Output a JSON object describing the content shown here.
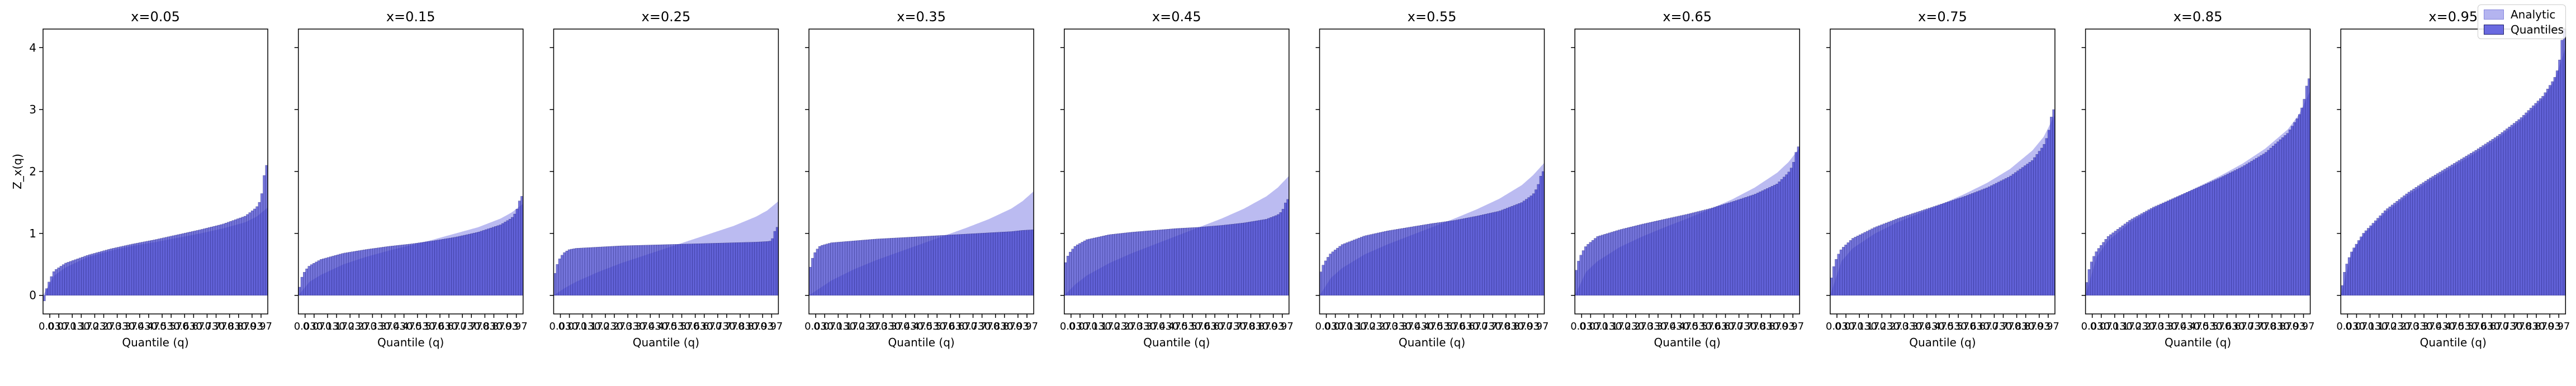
{
  "chart_data": {
    "type": "bar",
    "colors": {
      "analytic": "#b4b4f0",
      "quantiles": "#3a3acc",
      "quantiles_edge": "#20206a"
    },
    "legend": {
      "position": "top-right",
      "entries": [
        "Analytic",
        "Quantiles"
      ]
    },
    "ylabel": "Z_x(q)",
    "xlabel": "Quantile (q)",
    "ylim": [
      -0.3,
      4.3
    ],
    "yticks": [
      0,
      1,
      2,
      3,
      4
    ],
    "xlim": [
      0.0,
      1.0
    ],
    "xticks": [
      0.03,
      0.13,
      0.23,
      0.33,
      0.43,
      0.53,
      0.63,
      0.73,
      0.83,
      0.93
    ],
    "xtick_labels": [
      "0.03",
      "0.13",
      "0.23",
      "0.33",
      "0.43",
      "0.53",
      "0.63",
      "0.73",
      "0.83",
      "0.93"
    ],
    "xtick_labels_2": [
      "0.07",
      "0.17",
      "0.27",
      "0.37",
      "0.47",
      "0.57",
      "0.67",
      "0.77",
      "0.87",
      "0.97"
    ],
    "panels": [
      {
        "title": "x=0.05",
        "analytic": {
          "q": [
            0.0,
            0.05,
            0.1,
            0.2,
            0.3,
            0.4,
            0.5,
            0.6,
            0.7,
            0.8,
            0.9,
            0.95,
            1.0
          ],
          "z": [
            0.0,
            0.32,
            0.45,
            0.62,
            0.72,
            0.8,
            0.86,
            0.93,
            1.0,
            1.08,
            1.18,
            1.27,
            1.42
          ]
        },
        "quantiles": {
          "q": [
            0.0,
            0.01,
            0.03,
            0.05,
            0.1,
            0.2,
            0.3,
            0.4,
            0.5,
            0.6,
            0.7,
            0.8,
            0.9,
            0.95,
            0.97,
            0.99,
            1.0
          ],
          "z": [
            -0.25,
            0.05,
            0.25,
            0.4,
            0.52,
            0.65,
            0.75,
            0.83,
            0.9,
            0.98,
            1.06,
            1.15,
            1.28,
            1.42,
            1.55,
            2.1,
            2.1
          ]
        }
      },
      {
        "title": "x=0.15",
        "analytic": {
          "q": [
            0.0,
            0.05,
            0.1,
            0.2,
            0.3,
            0.4,
            0.5,
            0.6,
            0.7,
            0.8,
            0.9,
            0.95,
            1.0
          ],
          "z": [
            0.0,
            0.22,
            0.33,
            0.5,
            0.62,
            0.72,
            0.81,
            0.9,
            1.0,
            1.1,
            1.24,
            1.34,
            1.48
          ]
        },
        "quantiles": {
          "q": [
            0.0,
            0.01,
            0.03,
            0.05,
            0.1,
            0.2,
            0.3,
            0.4,
            0.5,
            0.6,
            0.7,
            0.8,
            0.9,
            0.95,
            0.97,
            0.99,
            1.0
          ],
          "z": [
            0.0,
            0.25,
            0.4,
            0.48,
            0.58,
            0.68,
            0.74,
            0.79,
            0.83,
            0.88,
            0.94,
            1.02,
            1.14,
            1.25,
            1.35,
            1.6,
            1.6
          ]
        }
      },
      {
        "title": "x=0.25",
        "analytic": {
          "q": [
            0.0,
            0.05,
            0.1,
            0.2,
            0.3,
            0.4,
            0.5,
            0.6,
            0.7,
            0.8,
            0.9,
            0.95,
            1.0
          ],
          "z": [
            0.0,
            0.12,
            0.22,
            0.38,
            0.52,
            0.64,
            0.76,
            0.88,
            1.0,
            1.12,
            1.27,
            1.37,
            1.52
          ]
        },
        "quantiles": {
          "q": [
            0.0,
            0.01,
            0.03,
            0.05,
            0.07,
            0.1,
            0.2,
            0.3,
            0.4,
            0.5,
            0.6,
            0.7,
            0.8,
            0.9,
            0.95,
            0.97,
            0.99,
            1.0
          ],
          "z": [
            0.25,
            0.45,
            0.62,
            0.7,
            0.74,
            0.76,
            0.78,
            0.8,
            0.81,
            0.82,
            0.83,
            0.84,
            0.85,
            0.86,
            0.87,
            0.88,
            1.1,
            1.1
          ]
        }
      },
      {
        "title": "x=0.35",
        "analytic": {
          "q": [
            0.0,
            0.05,
            0.1,
            0.2,
            0.3,
            0.4,
            0.5,
            0.6,
            0.7,
            0.8,
            0.9,
            0.95,
            1.0
          ],
          "z": [
            0.0,
            0.12,
            0.24,
            0.42,
            0.57,
            0.7,
            0.83,
            0.96,
            1.09,
            1.23,
            1.4,
            1.52,
            1.68
          ]
        },
        "quantiles": {
          "q": [
            0.0,
            0.01,
            0.03,
            0.05,
            0.1,
            0.2,
            0.3,
            0.4,
            0.5,
            0.6,
            0.7,
            0.8,
            0.9,
            0.95,
            1.0
          ],
          "z": [
            0.35,
            0.55,
            0.72,
            0.8,
            0.85,
            0.88,
            0.91,
            0.93,
            0.95,
            0.97,
            0.99,
            1.01,
            1.03,
            1.05,
            1.06
          ]
        }
      },
      {
        "title": "x=0.45",
        "analytic": {
          "q": [
            0.0,
            0.05,
            0.1,
            0.2,
            0.3,
            0.4,
            0.5,
            0.6,
            0.7,
            0.8,
            0.9,
            0.95,
            1.0
          ],
          "z": [
            0.0,
            0.18,
            0.32,
            0.52,
            0.68,
            0.82,
            0.96,
            1.1,
            1.24,
            1.4,
            1.6,
            1.74,
            1.93
          ]
        },
        "quantiles": {
          "q": [
            0.0,
            0.01,
            0.03,
            0.05,
            0.1,
            0.2,
            0.3,
            0.4,
            0.5,
            0.6,
            0.7,
            0.8,
            0.9,
            0.95,
            0.97,
            0.99,
            1.0
          ],
          "z": [
            0.45,
            0.6,
            0.72,
            0.8,
            0.9,
            0.98,
            1.02,
            1.05,
            1.08,
            1.1,
            1.13,
            1.17,
            1.23,
            1.3,
            1.36,
            1.55,
            1.55
          ]
        }
      },
      {
        "title": "x=0.55",
        "analytic": {
          "q": [
            0.0,
            0.05,
            0.1,
            0.2,
            0.3,
            0.4,
            0.5,
            0.6,
            0.7,
            0.8,
            0.9,
            0.95,
            1.0
          ],
          "z": [
            0.0,
            0.28,
            0.44,
            0.66,
            0.82,
            0.96,
            1.1,
            1.24,
            1.39,
            1.56,
            1.78,
            1.94,
            2.14
          ]
        },
        "quantiles": {
          "q": [
            0.0,
            0.01,
            0.03,
            0.05,
            0.1,
            0.2,
            0.3,
            0.4,
            0.5,
            0.6,
            0.7,
            0.8,
            0.9,
            0.95,
            0.97,
            0.99,
            1.0
          ],
          "z": [
            0.3,
            0.45,
            0.58,
            0.68,
            0.82,
            0.96,
            1.04,
            1.1,
            1.16,
            1.21,
            1.28,
            1.36,
            1.5,
            1.63,
            1.75,
            2.0,
            2.0
          ]
        }
      },
      {
        "title": "x=0.65",
        "analytic": {
          "q": [
            0.0,
            0.05,
            0.1,
            0.2,
            0.3,
            0.4,
            0.5,
            0.6,
            0.7,
            0.8,
            0.9,
            0.95,
            1.0
          ],
          "z": [
            0.0,
            0.38,
            0.55,
            0.78,
            0.95,
            1.1,
            1.24,
            1.39,
            1.55,
            1.74,
            1.98,
            2.15,
            2.38
          ]
        },
        "quantiles": {
          "q": [
            0.0,
            0.01,
            0.03,
            0.05,
            0.1,
            0.2,
            0.3,
            0.4,
            0.5,
            0.6,
            0.7,
            0.8,
            0.9,
            0.95,
            0.97,
            0.99,
            1.0
          ],
          "z": [
            0.3,
            0.5,
            0.68,
            0.8,
            0.95,
            1.06,
            1.15,
            1.23,
            1.31,
            1.4,
            1.51,
            1.63,
            1.8,
            1.98,
            2.1,
            2.4,
            2.4
          ]
        }
      },
      {
        "title": "x=0.75",
        "analytic": {
          "q": [
            0.0,
            0.05,
            0.1,
            0.2,
            0.3,
            0.4,
            0.5,
            0.6,
            0.7,
            0.8,
            0.9,
            0.95,
            1.0
          ],
          "z": [
            0.0,
            0.55,
            0.76,
            1.0,
            1.18,
            1.33,
            1.48,
            1.64,
            1.82,
            2.04,
            2.34,
            2.56,
            2.92
          ]
        },
        "quantiles": {
          "q": [
            0.0,
            0.01,
            0.03,
            0.05,
            0.1,
            0.2,
            0.3,
            0.4,
            0.5,
            0.6,
            0.7,
            0.8,
            0.9,
            0.95,
            0.97,
            0.99,
            1.0
          ],
          "z": [
            0.15,
            0.4,
            0.62,
            0.75,
            0.92,
            1.1,
            1.24,
            1.36,
            1.48,
            1.6,
            1.74,
            1.92,
            2.18,
            2.42,
            2.6,
            3.0,
            3.0
          ]
        }
      },
      {
        "title": "x=0.85",
        "analytic": {
          "q": [
            0.0,
            0.05,
            0.1,
            0.2,
            0.3,
            0.4,
            0.5,
            0.6,
            0.7,
            0.8,
            0.9,
            0.95,
            1.0
          ],
          "z": [
            0.0,
            0.62,
            0.88,
            1.18,
            1.4,
            1.58,
            1.75,
            1.93,
            2.13,
            2.37,
            2.68,
            2.92,
            3.3
          ]
        },
        "quantiles": {
          "q": [
            0.0,
            0.01,
            0.03,
            0.05,
            0.1,
            0.2,
            0.3,
            0.4,
            0.5,
            0.6,
            0.7,
            0.8,
            0.9,
            0.95,
            0.97,
            0.99,
            1.0
          ],
          "z": [
            0.05,
            0.35,
            0.58,
            0.72,
            0.95,
            1.22,
            1.42,
            1.58,
            1.74,
            1.9,
            2.08,
            2.3,
            2.62,
            2.9,
            3.1,
            3.5,
            3.5
          ]
        }
      },
      {
        "title": "x=0.95",
        "analytic": {
          "q": [
            0.0,
            0.05,
            0.1,
            0.2,
            0.3,
            0.4,
            0.5,
            0.6,
            0.7,
            0.8,
            0.9,
            0.95,
            1.0
          ],
          "z": [
            0.0,
            0.7,
            0.98,
            1.34,
            1.62,
            1.86,
            2.08,
            2.3,
            2.54,
            2.82,
            3.18,
            3.46,
            4.0
          ]
        },
        "quantiles": {
          "q": [
            0.0,
            0.01,
            0.03,
            0.05,
            0.1,
            0.2,
            0.3,
            0.4,
            0.5,
            0.6,
            0.7,
            0.8,
            0.9,
            0.95,
            0.97,
            0.99,
            1.0
          ],
          "z": [
            0.0,
            0.3,
            0.55,
            0.72,
            1.0,
            1.38,
            1.66,
            1.9,
            2.12,
            2.34,
            2.58,
            2.86,
            3.22,
            3.5,
            3.7,
            4.3,
            4.3
          ]
        }
      }
    ]
  }
}
